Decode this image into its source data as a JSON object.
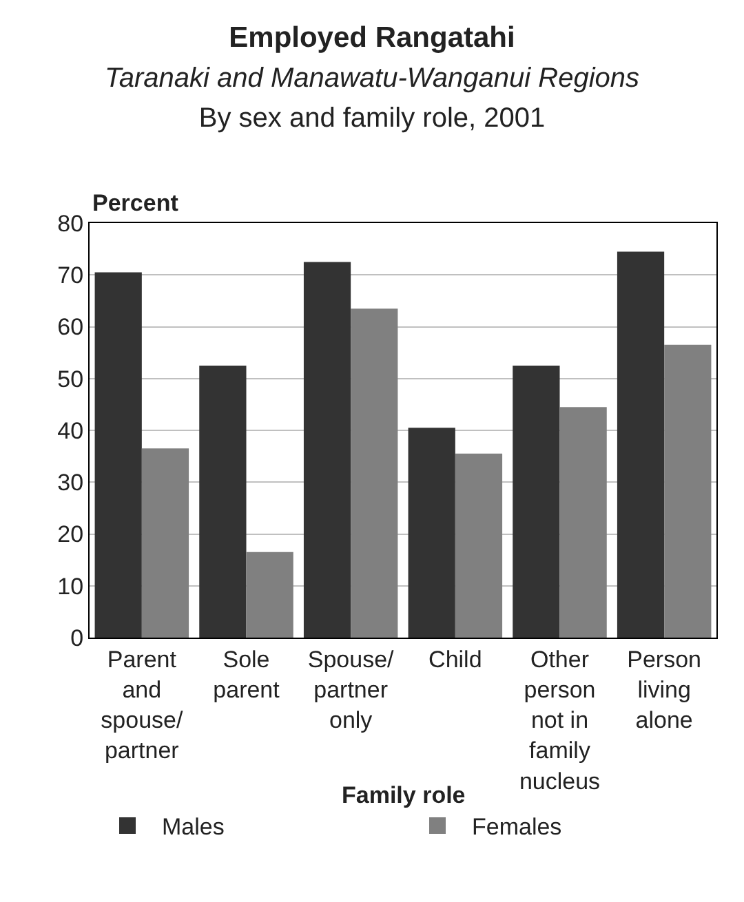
{
  "chart_data": {
    "type": "bar",
    "title": "Employed Rangatahi",
    "subtitle": "Taranaki and Manawatu-Wanganui Regions",
    "annotations": [
      "By sex and family role, 2001"
    ],
    "categories": [
      "Parent\nand\nspouse/\npartner",
      "Sole\nparent",
      "Spouse/\npartner\nonly",
      "Child",
      "Other\nperson\nnot in\nfamily\nnucleus",
      "Person\nliving\nalone"
    ],
    "series": [
      {
        "name": "Males",
        "color": "#333333",
        "values": [
          70.5,
          52.5,
          72.5,
          40.5,
          52.5,
          74.5
        ]
      },
      {
        "name": "Females",
        "color": "#808080",
        "values": [
          36.5,
          16.5,
          63.5,
          35.5,
          44.5,
          56.5
        ]
      }
    ],
    "xlabel": "Family role",
    "ylabel": "Percent",
    "ylim": [
      0,
      80
    ],
    "yticks": [
      0,
      10,
      20,
      30,
      40,
      50,
      60,
      70,
      80
    ],
    "grid": "y",
    "legend": "bottom"
  }
}
